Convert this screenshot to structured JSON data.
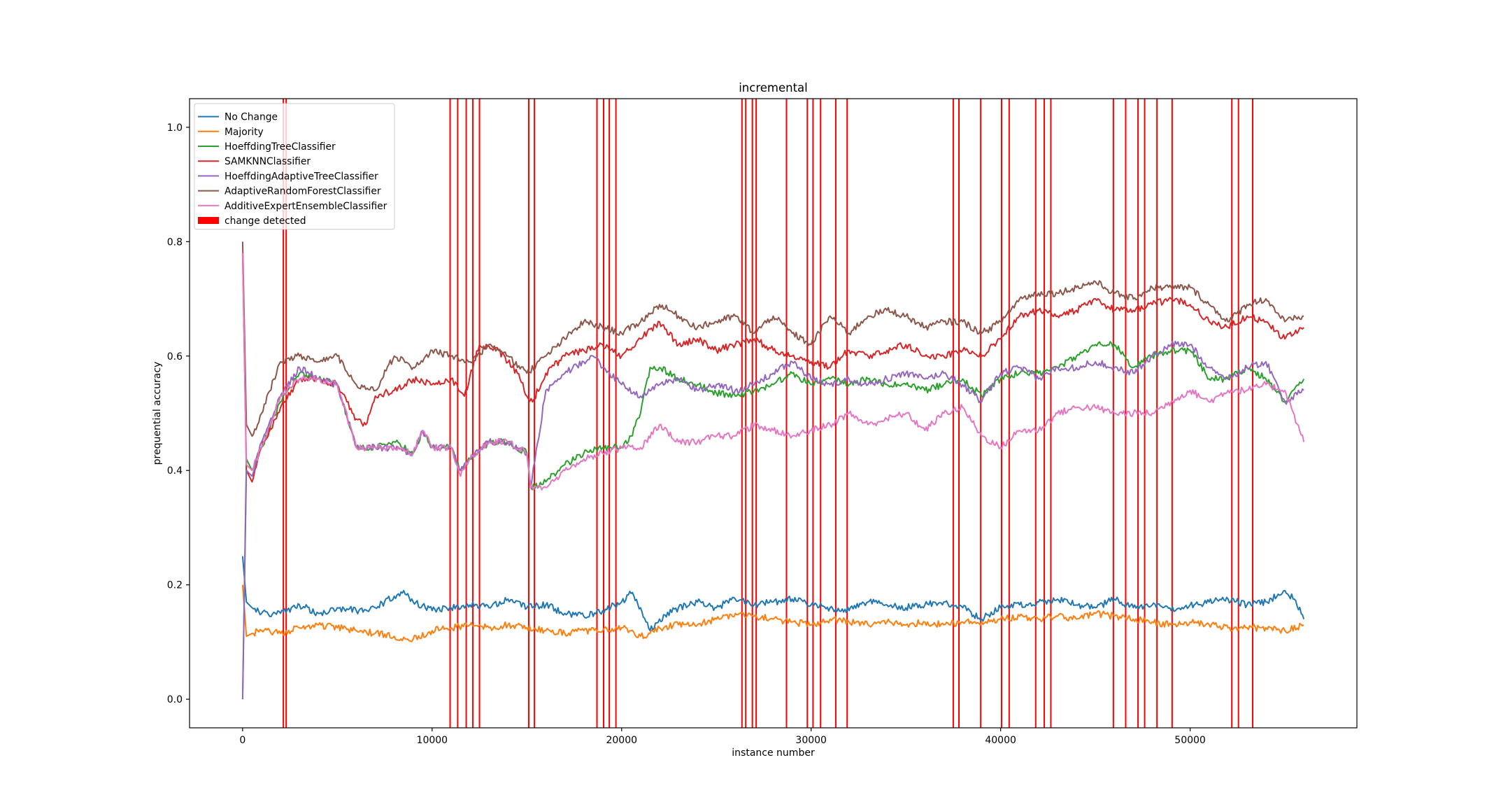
{
  "chart_data": {
    "type": "line",
    "title": "incremental",
    "xlabel": "instance number",
    "ylabel": "prequential accuracy",
    "xlim": [
      -2800,
      58800
    ],
    "ylim": [
      -0.05,
      1.05
    ],
    "xticks": [
      0,
      10000,
      20000,
      30000,
      40000,
      50000
    ],
    "yticks": [
      0.0,
      0.2,
      0.4,
      0.6,
      0.8,
      1.0
    ],
    "xtick_labels": [
      "0",
      "10000",
      "20000",
      "30000",
      "40000",
      "50000"
    ],
    "ytick_labels": [
      "0.0",
      "0.2",
      "0.4",
      "0.6",
      "0.8",
      "1.0"
    ],
    "grid": false,
    "legend_position": "top-left",
    "series": [
      {
        "name": "No Change",
        "color": "#1f77b4",
        "x": [
          0,
          200,
          500,
          1000,
          2000,
          3000,
          4000,
          5000,
          6000,
          7000,
          8000,
          8500,
          9000,
          10000,
          11000,
          12000,
          13000,
          14000,
          15000,
          16000,
          17000,
          18000,
          19000,
          20000,
          20500,
          21000,
          21500,
          22000,
          23000,
          24000,
          25000,
          26000,
          27000,
          28000,
          29000,
          30000,
          31000,
          32000,
          33000,
          34000,
          35000,
          36000,
          37000,
          38000,
          39000,
          40000,
          41000,
          42000,
          43000,
          44000,
          45000,
          46000,
          47000,
          48000,
          49000,
          50000,
          51000,
          52000,
          53000,
          54000,
          55000,
          55500,
          56000
        ],
        "y": [
          0.25,
          0.17,
          0.16,
          0.15,
          0.15,
          0.165,
          0.15,
          0.16,
          0.155,
          0.16,
          0.18,
          0.19,
          0.17,
          0.155,
          0.16,
          0.165,
          0.16,
          0.175,
          0.16,
          0.165,
          0.15,
          0.145,
          0.155,
          0.17,
          0.185,
          0.16,
          0.12,
          0.14,
          0.16,
          0.17,
          0.16,
          0.175,
          0.165,
          0.17,
          0.175,
          0.165,
          0.16,
          0.155,
          0.17,
          0.165,
          0.16,
          0.165,
          0.17,
          0.16,
          0.14,
          0.16,
          0.165,
          0.17,
          0.175,
          0.165,
          0.16,
          0.175,
          0.16,
          0.165,
          0.155,
          0.165,
          0.17,
          0.175,
          0.165,
          0.17,
          0.19,
          0.175,
          0.14
        ]
      },
      {
        "name": "Majority",
        "color": "#ff7f0e",
        "x": [
          0,
          200,
          500,
          1000,
          2000,
          3000,
          4000,
          5000,
          6000,
          7000,
          8000,
          9000,
          10000,
          11000,
          12000,
          13000,
          14000,
          15000,
          16000,
          17000,
          18000,
          19000,
          20000,
          21000,
          21500,
          22000,
          23000,
          24000,
          25000,
          26000,
          27000,
          28000,
          29000,
          30000,
          31000,
          32000,
          33000,
          34000,
          35000,
          36000,
          37000,
          38000,
          39000,
          40000,
          41000,
          42000,
          43000,
          44000,
          45000,
          46000,
          47000,
          48000,
          49000,
          50000,
          51000,
          52000,
          53000,
          54000,
          55000,
          56000
        ],
        "y": [
          0.2,
          0.11,
          0.115,
          0.12,
          0.115,
          0.125,
          0.13,
          0.125,
          0.12,
          0.115,
          0.11,
          0.105,
          0.12,
          0.125,
          0.13,
          0.125,
          0.13,
          0.125,
          0.12,
          0.115,
          0.12,
          0.12,
          0.125,
          0.11,
          0.115,
          0.125,
          0.13,
          0.13,
          0.14,
          0.15,
          0.145,
          0.14,
          0.135,
          0.13,
          0.14,
          0.135,
          0.13,
          0.135,
          0.13,
          0.135,
          0.13,
          0.135,
          0.135,
          0.14,
          0.145,
          0.14,
          0.145,
          0.14,
          0.15,
          0.145,
          0.14,
          0.135,
          0.13,
          0.135,
          0.13,
          0.125,
          0.125,
          0.125,
          0.12,
          0.13
        ]
      },
      {
        "name": "HoeffdingTreeClassifier",
        "color": "#2ca02c",
        "x": [
          0,
          200,
          500,
          1000,
          2000,
          3000,
          4000,
          5000,
          6000,
          7000,
          8000,
          9000,
          9500,
          10000,
          11000,
          11500,
          12000,
          13000,
          14000,
          15000,
          15200,
          16000,
          17000,
          18000,
          19000,
          20000,
          20500,
          21000,
          21500,
          22000,
          23000,
          24000,
          25000,
          26000,
          27000,
          28000,
          29000,
          30000,
          31000,
          32000,
          33000,
          34000,
          35000,
          36000,
          37000,
          38000,
          39000,
          40000,
          41000,
          42000,
          43000,
          44000,
          45000,
          46000,
          47000,
          48000,
          49000,
          50000,
          51000,
          52000,
          53000,
          54000,
          55000,
          56000
        ],
        "y": [
          0.0,
          0.42,
          0.4,
          0.44,
          0.52,
          0.57,
          0.56,
          0.55,
          0.44,
          0.44,
          0.45,
          0.43,
          0.47,
          0.44,
          0.44,
          0.4,
          0.42,
          0.45,
          0.45,
          0.43,
          0.37,
          0.38,
          0.41,
          0.43,
          0.44,
          0.44,
          0.46,
          0.5,
          0.58,
          0.58,
          0.56,
          0.55,
          0.535,
          0.53,
          0.54,
          0.55,
          0.57,
          0.55,
          0.56,
          0.55,
          0.56,
          0.55,
          0.55,
          0.54,
          0.55,
          0.56,
          0.53,
          0.56,
          0.57,
          0.57,
          0.58,
          0.6,
          0.62,
          0.62,
          0.58,
          0.6,
          0.61,
          0.61,
          0.56,
          0.56,
          0.58,
          0.56,
          0.52,
          0.56
        ]
      },
      {
        "name": "SAMKNNClassifier",
        "color": "#d62728",
        "x": [
          0,
          200,
          500,
          1000,
          2000,
          3000,
          4000,
          5000,
          6000,
          6500,
          7000,
          8000,
          9000,
          10000,
          11000,
          11700,
          12500,
          13500,
          14500,
          15000,
          15300,
          16000,
          17000,
          18000,
          19000,
          20000,
          21000,
          22000,
          23000,
          24000,
          25000,
          26000,
          27000,
          28000,
          29000,
          30000,
          31000,
          32000,
          33000,
          34000,
          35000,
          36000,
          37000,
          38000,
          39000,
          40000,
          41000,
          42000,
          43000,
          44000,
          45000,
          46000,
          47000,
          48000,
          49000,
          50000,
          51000,
          52000,
          53000,
          54000,
          55000,
          56000
        ],
        "y": [
          0.78,
          0.4,
          0.38,
          0.44,
          0.51,
          0.56,
          0.56,
          0.55,
          0.49,
          0.48,
          0.53,
          0.54,
          0.56,
          0.55,
          0.56,
          0.53,
          0.62,
          0.61,
          0.57,
          0.53,
          0.52,
          0.57,
          0.6,
          0.61,
          0.62,
          0.6,
          0.63,
          0.66,
          0.62,
          0.63,
          0.61,
          0.62,
          0.63,
          0.61,
          0.6,
          0.59,
          0.58,
          0.61,
          0.6,
          0.61,
          0.62,
          0.6,
          0.6,
          0.61,
          0.6,
          0.63,
          0.67,
          0.68,
          0.67,
          0.68,
          0.7,
          0.68,
          0.68,
          0.69,
          0.7,
          0.69,
          0.66,
          0.65,
          0.67,
          0.66,
          0.63,
          0.65
        ]
      },
      {
        "name": "HoeffdingAdaptiveTreeClassifier",
        "color": "#9467bd",
        "x": [
          0,
          200,
          500,
          1000,
          2000,
          3000,
          4000,
          5000,
          6000,
          7000,
          8000,
          9000,
          9500,
          10000,
          11000,
          11500,
          12000,
          13000,
          14000,
          15000,
          15200,
          16000,
          17000,
          18000,
          18500,
          19000,
          20000,
          21000,
          22000,
          23000,
          24000,
          25000,
          26000,
          27000,
          28000,
          29000,
          30000,
          31000,
          32000,
          33000,
          34000,
          35000,
          36000,
          37000,
          38000,
          39000,
          40000,
          41000,
          42000,
          43000,
          44000,
          45000,
          46000,
          47000,
          48000,
          49000,
          50000,
          51000,
          52000,
          53000,
          54000,
          55000,
          56000
        ],
        "y": [
          0.0,
          0.4,
          0.39,
          0.45,
          0.53,
          0.58,
          0.56,
          0.55,
          0.44,
          0.44,
          0.44,
          0.43,
          0.47,
          0.44,
          0.44,
          0.4,
          0.42,
          0.45,
          0.45,
          0.43,
          0.37,
          0.54,
          0.57,
          0.59,
          0.6,
          0.58,
          0.55,
          0.53,
          0.55,
          0.56,
          0.54,
          0.55,
          0.54,
          0.55,
          0.57,
          0.59,
          0.56,
          0.55,
          0.56,
          0.55,
          0.56,
          0.57,
          0.56,
          0.57,
          0.55,
          0.52,
          0.57,
          0.58,
          0.56,
          0.58,
          0.58,
          0.59,
          0.58,
          0.57,
          0.6,
          0.62,
          0.62,
          0.58,
          0.56,
          0.58,
          0.59,
          0.52,
          0.54
        ]
      },
      {
        "name": "AdaptiveRandomForestClassifier",
        "color": "#8c564b",
        "x": [
          0,
          200,
          500,
          1000,
          2000,
          3000,
          4000,
          5000,
          6000,
          7000,
          8000,
          9000,
          10000,
          11000,
          12000,
          13000,
          14000,
          15000,
          16000,
          17000,
          18000,
          19000,
          20000,
          21000,
          22000,
          23000,
          24000,
          25000,
          26000,
          27000,
          28000,
          29000,
          30000,
          31000,
          32000,
          33000,
          34000,
          35000,
          36000,
          37000,
          38000,
          39000,
          40000,
          41000,
          42000,
          43000,
          44000,
          45000,
          46000,
          47000,
          48000,
          49000,
          50000,
          51000,
          52000,
          53000,
          54000,
          55000,
          56000
        ],
        "y": [
          0.8,
          0.48,
          0.46,
          0.5,
          0.59,
          0.6,
          0.59,
          0.6,
          0.55,
          0.54,
          0.6,
          0.58,
          0.61,
          0.6,
          0.59,
          0.62,
          0.6,
          0.57,
          0.6,
          0.63,
          0.66,
          0.65,
          0.64,
          0.66,
          0.69,
          0.67,
          0.65,
          0.66,
          0.67,
          0.64,
          0.67,
          0.64,
          0.62,
          0.67,
          0.64,
          0.67,
          0.68,
          0.67,
          0.65,
          0.66,
          0.66,
          0.64,
          0.66,
          0.7,
          0.71,
          0.71,
          0.72,
          0.73,
          0.71,
          0.7,
          0.72,
          0.72,
          0.72,
          0.69,
          0.66,
          0.69,
          0.7,
          0.66,
          0.67
        ]
      },
      {
        "name": "AdditiveExpertEnsembleClassifier",
        "color": "#e377c2",
        "x": [
          0,
          200,
          500,
          1000,
          2000,
          3000,
          4000,
          5000,
          6000,
          7000,
          8000,
          9000,
          9500,
          10000,
          11000,
          11500,
          12000,
          13000,
          14000,
          15000,
          15200,
          16000,
          17000,
          18000,
          19000,
          20000,
          21000,
          22000,
          23000,
          24000,
          25000,
          26000,
          27000,
          28000,
          29000,
          30000,
          31000,
          32000,
          33000,
          34000,
          35000,
          36000,
          37000,
          38000,
          39000,
          40000,
          41000,
          42000,
          43000,
          44000,
          45000,
          46000,
          47000,
          48000,
          49000,
          50000,
          51000,
          52000,
          53000,
          54000,
          55000,
          56000
        ],
        "y": [
          0.78,
          0.41,
          0.4,
          0.44,
          0.53,
          0.56,
          0.56,
          0.55,
          0.44,
          0.44,
          0.44,
          0.43,
          0.47,
          0.44,
          0.44,
          0.39,
          0.42,
          0.45,
          0.45,
          0.43,
          0.37,
          0.37,
          0.4,
          0.42,
          0.43,
          0.44,
          0.44,
          0.48,
          0.45,
          0.45,
          0.46,
          0.46,
          0.48,
          0.47,
          0.46,
          0.47,
          0.48,
          0.5,
          0.48,
          0.49,
          0.5,
          0.47,
          0.5,
          0.51,
          0.46,
          0.44,
          0.47,
          0.47,
          0.5,
          0.51,
          0.51,
          0.5,
          0.5,
          0.5,
          0.52,
          0.54,
          0.52,
          0.54,
          0.54,
          0.55,
          0.54,
          0.45
        ]
      }
    ],
    "change_detected": {
      "name": "change detected",
      "color": "#ff0000",
      "x": [
        2150,
        2300,
        10950,
        11350,
        11800,
        12150,
        12500,
        15100,
        15400,
        18700,
        19050,
        19350,
        19700,
        26350,
        26550,
        26900,
        27100,
        28700,
        29800,
        30100,
        30500,
        31300,
        31900,
        37500,
        37800,
        38950,
        40050,
        40450,
        41850,
        42300,
        42650,
        45950,
        46600,
        47250,
        47600,
        48250,
        49050,
        52200,
        52550,
        53300
      ]
    }
  }
}
